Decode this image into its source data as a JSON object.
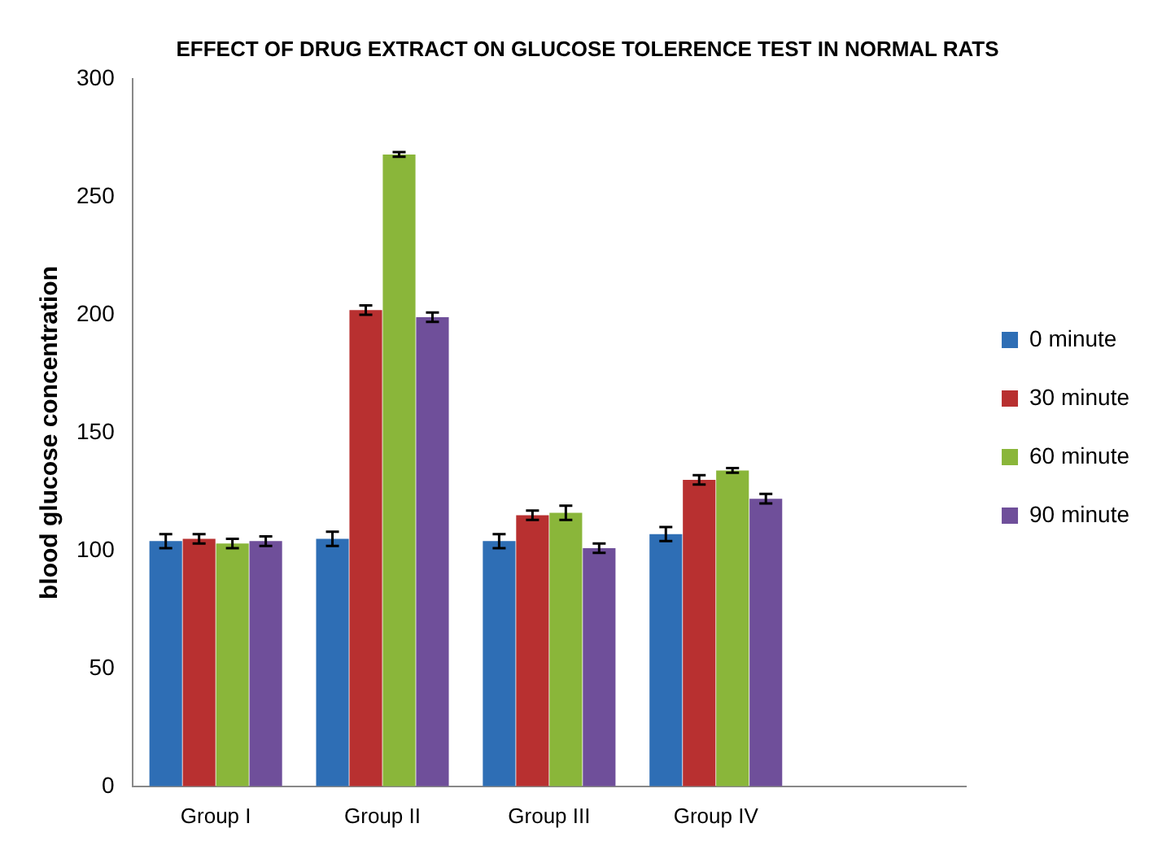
{
  "chart_data": {
    "type": "bar",
    "title": "EFFECT OF DRUG EXTRACT ON GLUCOSE TOLERENCE TEST IN NORMAL RATS",
    "ylabel": "blood glucose concentration",
    "categories": [
      "Group I",
      "Group II",
      "Group III",
      "Group IV",
      null
    ],
    "series": [
      {
        "name": "0 minute",
        "color": "#2e6eb5",
        "values": [
          104,
          105,
          104,
          107,
          null
        ],
        "errors": [
          3,
          3,
          3,
          3,
          null
        ]
      },
      {
        "name": "30 minute",
        "color": "#b83030",
        "values": [
          105,
          202,
          115,
          130,
          null
        ],
        "errors": [
          2,
          2,
          2,
          2,
          null
        ]
      },
      {
        "name": "60 minute",
        "color": "#8ab63a",
        "values": [
          103,
          268,
          116,
          134,
          null
        ],
        "errors": [
          2,
          1,
          3,
          1,
          null
        ]
      },
      {
        "name": "90 minute",
        "color": "#6f4f9a",
        "values": [
          104,
          199,
          101,
          122,
          null
        ],
        "errors": [
          2,
          2,
          2,
          2,
          null
        ]
      }
    ],
    "ylim": [
      0,
      300
    ],
    "yticks": [
      0,
      50,
      100,
      150,
      200,
      250,
      300
    ],
    "grid": false,
    "legend": "right"
  }
}
